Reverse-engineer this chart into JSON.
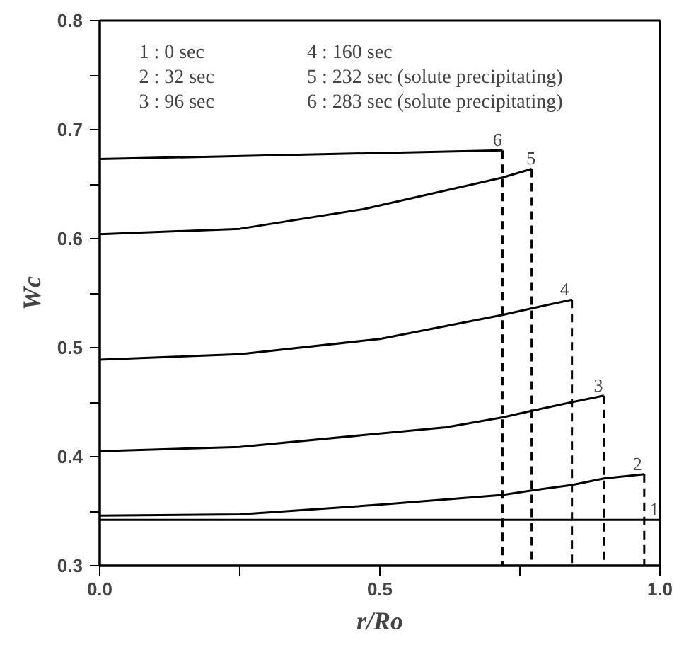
{
  "chart_data": {
    "type": "line",
    "xlabel": "r/Ro",
    "ylabel": "Wc",
    "xlim": [
      0,
      1.0
    ],
    "ylim": [
      0.3,
      0.8
    ],
    "xticks": [
      {
        "value": 0,
        "label": "0.0"
      },
      {
        "value": 0.25,
        "label": null
      },
      0.5,
      {
        "value": 0.75,
        "label": null
      },
      {
        "value": 1.0,
        "label": "1.0"
      }
    ],
    "yticks": [
      0.3,
      {
        "value": 0.35,
        "label": null
      },
      0.4,
      {
        "value": 0.45,
        "label": null
      },
      0.5,
      {
        "value": 0.55,
        "label": null
      },
      0.6,
      {
        "value": 0.65,
        "label": null
      },
      0.7,
      {
        "value": 0.75,
        "label": null
      },
      0.8
    ],
    "grid": false,
    "marker": "none",
    "series": [
      {
        "color": "#000000",
        "line_style": "solid",
        "x": [
          0,
          1.0
        ],
        "values": [
          0.342,
          0.342
        ]
      },
      {
        "color": "#000000",
        "line_style": "solid",
        "x": [
          0,
          0.25,
          0.5,
          0.719,
          0.771,
          0.843,
          0.9,
          0.972
        ],
        "values": [
          0.346,
          0.347,
          0.356,
          0.365,
          0.369,
          0.374,
          0.38,
          0.384
        ]
      },
      {
        "color": "#000000",
        "line_style": "solid",
        "x": [
          0,
          0.25,
          0.618,
          0.719,
          0.771,
          0.843,
          0.9
        ],
        "values": [
          0.405,
          0.409,
          0.427,
          0.436,
          0.442,
          0.45,
          0.456
        ]
      },
      {
        "color": "#000000",
        "line_style": "solid",
        "x": [
          0,
          0.25,
          0.5,
          0.719,
          0.771,
          0.843
        ],
        "values": [
          0.489,
          0.494,
          0.508,
          0.53,
          0.536,
          0.544
        ]
      },
      {
        "color": "#000000",
        "line_style": "solid",
        "x": [
          0,
          0.25,
          0.47,
          0.719,
          0.771
        ],
        "values": [
          0.604,
          0.609,
          0.627,
          0.656,
          0.664
        ]
      },
      {
        "color": "#000000",
        "line_style": "solid",
        "x": [
          0,
          0.719
        ],
        "values": [
          0.673,
          0.681
        ]
      },
      {
        "color": "#000000",
        "line_style": "dashed",
        "x": [
          0.972,
          0.972
        ],
        "values": [
          0.384,
          0.3
        ]
      },
      {
        "color": "#000000",
        "line_style": "dashed",
        "x": [
          0.9,
          0.9
        ],
        "values": [
          0.456,
          0.3
        ]
      },
      {
        "color": "#000000",
        "line_style": "dashed",
        "x": [
          0.843,
          0.843
        ],
        "values": [
          0.544,
          0.3
        ]
      },
      {
        "color": "#000000",
        "line_style": "dashed",
        "x": [
          0.771,
          0.771
        ],
        "values": [
          0.664,
          0.3
        ]
      },
      {
        "color": "#000000",
        "line_style": "dashed",
        "x": [
          0.719,
          0.719
        ],
        "values": [
          0.681,
          0.3
        ]
      }
    ],
    "annotations": [
      "1 :  0  sec",
      "4 : 160 sec",
      "2 : 32 sec",
      "5 : 232 sec (solute precipitating)",
      "3 : 96 sec",
      "6 : 283 sec (solute precipitating)",
      {
        "text": "1",
        "x": 0.99,
        "y": 0.342
      },
      {
        "text": "2",
        "x": 0.96,
        "y": 0.384
      },
      {
        "text": "3",
        "x": 0.89,
        "y": 0.456
      },
      {
        "text": "4",
        "x": 0.83,
        "y": 0.544
      },
      {
        "text": "5",
        "x": 0.77,
        "y": 0.664
      },
      {
        "text": "6",
        "x": 0.71,
        "y": 0.681
      }
    ]
  }
}
